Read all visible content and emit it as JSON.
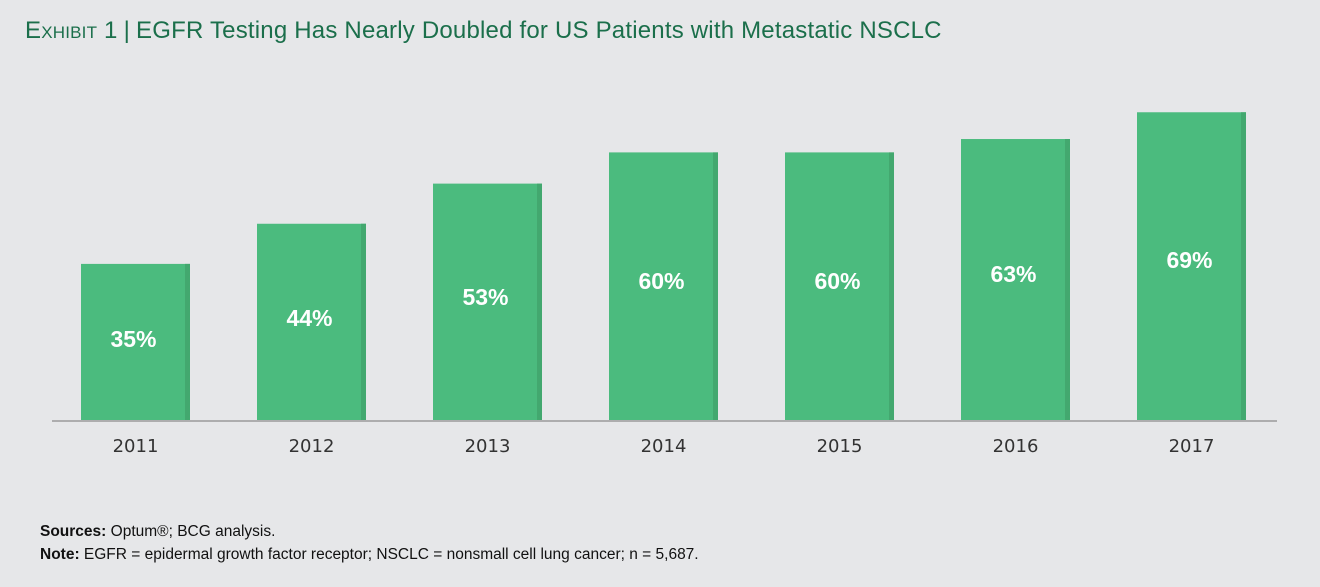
{
  "title": {
    "exhibit": "Exhibit 1",
    "separator": "|",
    "text": "EGFR Testing Has Nearly Doubled for US Patients with Metastatic NSCLC"
  },
  "chart_data": {
    "type": "bar",
    "categories": [
      "2011",
      "2012",
      "2013",
      "2014",
      "2015",
      "2016",
      "2017"
    ],
    "values": [
      35,
      44,
      53,
      60,
      60,
      63,
      69
    ],
    "data_labels": [
      "35%",
      "44%",
      "53%",
      "60%",
      "60%",
      "63%",
      "69%"
    ],
    "ylim": [
      0,
      100
    ],
    "grid": false,
    "bar_color": "#4bbb7e",
    "bar_edge_color": "#43a86f",
    "label_color": "#ffffff"
  },
  "footer": {
    "sources_label": "Sources:",
    "sources_text": " Optum®; BCG analysis.",
    "note_label": "Note:",
    "note_text": " EGFR = epidermal growth factor receptor; NSCLC = nonsmall cell lung cancer; n = 5,687."
  }
}
